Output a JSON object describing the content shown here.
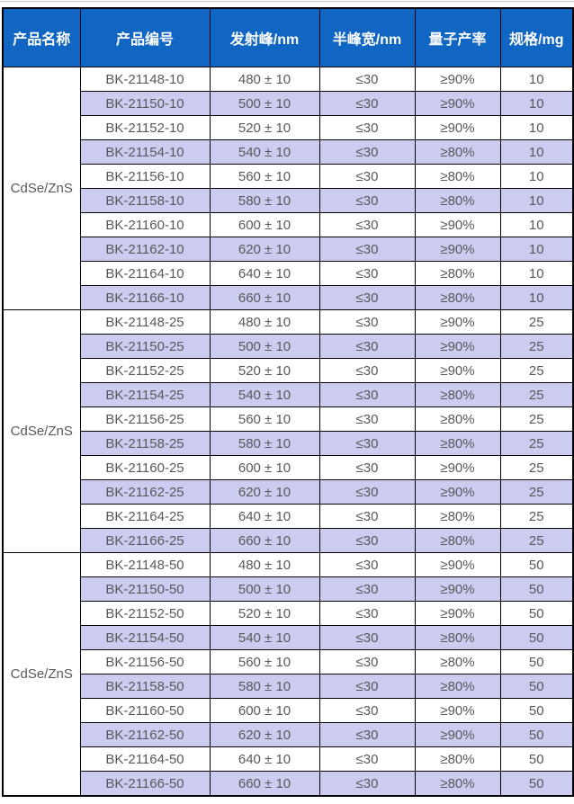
{
  "colors": {
    "header_bg": "#1166C4",
    "header_text": "#FFFFFF",
    "stripe_bg": "#CBCCF0",
    "row_bg": "#FFFFFF",
    "cell_text": "#595959",
    "border": "#000000",
    "top_rule": "#C8C8C8"
  },
  "table": {
    "headers": [
      "产品名称",
      "产品编号",
      "发射峰/nm",
      "半峰宽/nm",
      "量子产率",
      "规格/mg"
    ],
    "column_keys": [
      "code",
      "emission",
      "fwhm",
      "qy",
      "spec"
    ],
    "groups": [
      {
        "product_name": "CdSe/ZnS",
        "rows": [
          {
            "code": "BK-21148-10",
            "emission": "480 ± 10",
            "fwhm": "≤30",
            "qy": "≥90%",
            "spec": "10"
          },
          {
            "code": "BK-21150-10",
            "emission": "500 ± 10",
            "fwhm": "≤30",
            "qy": "≥90%",
            "spec": "10"
          },
          {
            "code": "BK-21152-10",
            "emission": "520 ± 10",
            "fwhm": "≤30",
            "qy": "≥90%",
            "spec": "10"
          },
          {
            "code": "BK-21154-10",
            "emission": "540 ± 10",
            "fwhm": "≤30",
            "qy": "≥80%",
            "spec": "10"
          },
          {
            "code": "BK-21156-10",
            "emission": "560 ± 10",
            "fwhm": "≤30",
            "qy": "≥80%",
            "spec": "10"
          },
          {
            "code": "BK-21158-10",
            "emission": "580 ± 10",
            "fwhm": "≤30",
            "qy": "≥80%",
            "spec": "10"
          },
          {
            "code": "BK-21160-10",
            "emission": "600 ± 10",
            "fwhm": "≤30",
            "qy": "≥90%",
            "spec": "10"
          },
          {
            "code": "BK-21162-10",
            "emission": "620 ± 10",
            "fwhm": "≤30",
            "qy": "≥90%",
            "spec": "10"
          },
          {
            "code": "BK-21164-10",
            "emission": "640 ± 10",
            "fwhm": "≤30",
            "qy": "≥80%",
            "spec": "10"
          },
          {
            "code": "BK-21166-10",
            "emission": "660 ± 10",
            "fwhm": "≤30",
            "qy": "≥80%",
            "spec": "10"
          }
        ]
      },
      {
        "product_name": "CdSe/ZnS",
        "rows": [
          {
            "code": "BK-21148-25",
            "emission": "480 ± 10",
            "fwhm": "≤30",
            "qy": "≥90%",
            "spec": "25"
          },
          {
            "code": "BK-21150-25",
            "emission": "500 ± 10",
            "fwhm": "≤30",
            "qy": "≥90%",
            "spec": "25"
          },
          {
            "code": "BK-21152-25",
            "emission": "520 ± 10",
            "fwhm": "≤30",
            "qy": "≥90%",
            "spec": "25"
          },
          {
            "code": "BK-21154-25",
            "emission": "540 ± 10",
            "fwhm": "≤30",
            "qy": "≥80%",
            "spec": "25"
          },
          {
            "code": "BK-21156-25",
            "emission": "560 ± 10",
            "fwhm": "≤30",
            "qy": "≥80%",
            "spec": "25"
          },
          {
            "code": "BK-21158-25",
            "emission": "580 ± 10",
            "fwhm": "≤30",
            "qy": "≥80%",
            "spec": "25"
          },
          {
            "code": "BK-21160-25",
            "emission": "600 ± 10",
            "fwhm": "≤30",
            "qy": "≥90%",
            "spec": "25"
          },
          {
            "code": "BK-21162-25",
            "emission": "620 ± 10",
            "fwhm": "≤30",
            "qy": "≥90%",
            "spec": "25"
          },
          {
            "code": "BK-21164-25",
            "emission": "640 ± 10",
            "fwhm": "≤30",
            "qy": "≥80%",
            "spec": "25"
          },
          {
            "code": "BK-21166-25",
            "emission": "660 ± 10",
            "fwhm": "≤30",
            "qy": "≥80%",
            "spec": "25"
          }
        ]
      },
      {
        "product_name": "CdSe/ZnS",
        "rows": [
          {
            "code": "BK-21148-50",
            "emission": "480 ± 10",
            "fwhm": "≤30",
            "qy": "≥90%",
            "spec": "50"
          },
          {
            "code": "BK-21150-50",
            "emission": "500 ± 10",
            "fwhm": "≤30",
            "qy": "≥90%",
            "spec": "50"
          },
          {
            "code": "BK-21152-50",
            "emission": "520 ± 10",
            "fwhm": "≤30",
            "qy": "≥90%",
            "spec": "50"
          },
          {
            "code": "BK-21154-50",
            "emission": "540 ± 10",
            "fwhm": "≤30",
            "qy": "≥80%",
            "spec": "50"
          },
          {
            "code": "BK-21156-50",
            "emission": "560 ± 10",
            "fwhm": "≤30",
            "qy": "≥80%",
            "spec": "50"
          },
          {
            "code": "BK-21158-50",
            "emission": "580 ± 10",
            "fwhm": "≤30",
            "qy": "≥80%",
            "spec": "50"
          },
          {
            "code": "BK-21160-50",
            "emission": "600 ± 10",
            "fwhm": "≤30",
            "qy": "≥90%",
            "spec": "50"
          },
          {
            "code": "BK-21162-50",
            "emission": "620 ± 10",
            "fwhm": "≤30",
            "qy": "≥90%",
            "spec": "50"
          },
          {
            "code": "BK-21164-50",
            "emission": "640 ± 10",
            "fwhm": "≤30",
            "qy": "≥80%",
            "spec": "50"
          },
          {
            "code": "BK-21166-50",
            "emission": "660 ± 10",
            "fwhm": "≤30",
            "qy": "≥80%",
            "spec": "50"
          }
        ]
      }
    ]
  }
}
